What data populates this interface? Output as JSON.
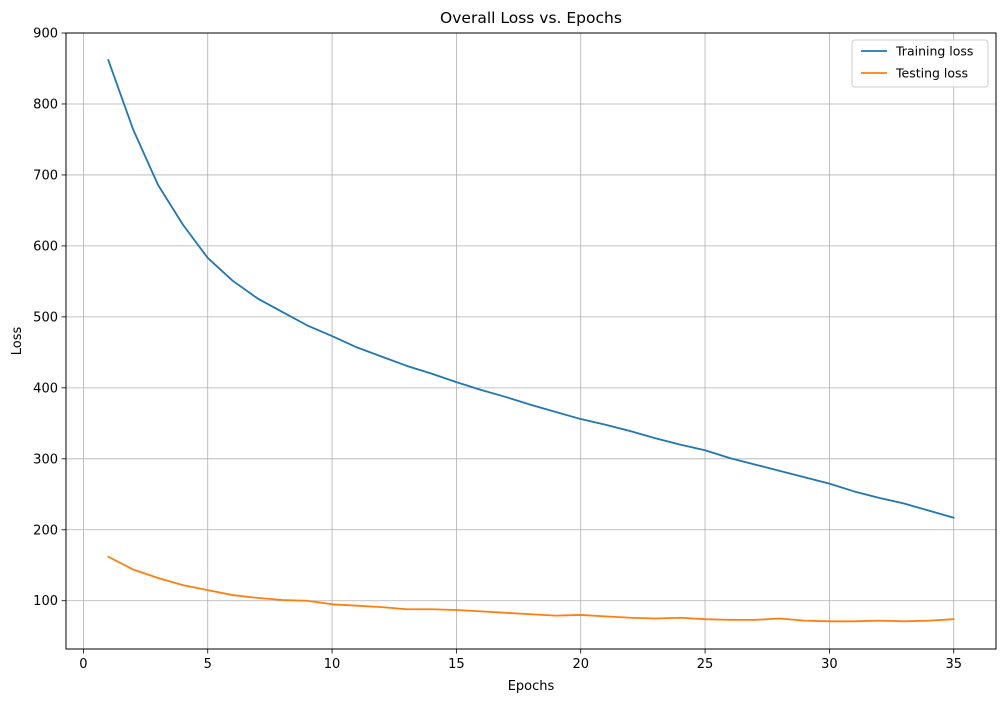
{
  "chart_data": {
    "type": "line",
    "title": "Overall Loss vs. Epochs",
    "xlabel": "Epochs",
    "ylabel": "Loss",
    "xlim": [
      -0.7,
      36.7
    ],
    "ylim": [
      32,
      900
    ],
    "xticks": [
      0,
      5,
      10,
      15,
      20,
      25,
      30,
      35
    ],
    "yticks": [
      100,
      200,
      300,
      400,
      500,
      600,
      700,
      800,
      900
    ],
    "grid": true,
    "legend_position": "top-right",
    "x": [
      1,
      2,
      3,
      4,
      5,
      6,
      7,
      8,
      9,
      10,
      11,
      12,
      13,
      14,
      15,
      16,
      17,
      18,
      19,
      20,
      21,
      22,
      23,
      24,
      25,
      26,
      27,
      28,
      29,
      30,
      31,
      32,
      33,
      34,
      35
    ],
    "series": [
      {
        "name": "Training loss",
        "color": "#1f77b4",
        "values": [
          862,
          764,
          686,
          630,
          583,
          551,
          526,
          507,
          488,
          473,
          457,
          444,
          431,
          420,
          408,
          397,
          387,
          376,
          366,
          356,
          348,
          339,
          329,
          320,
          312,
          301,
          292,
          283,
          274,
          265,
          254,
          245,
          237,
          227,
          217
        ]
      },
      {
        "name": "Testing loss",
        "color": "#ff7f0e",
        "values": [
          162,
          144,
          132,
          122,
          115,
          108,
          104,
          101,
          100,
          95,
          93,
          91,
          88,
          88,
          87,
          85,
          83,
          81,
          79,
          80,
          78,
          76,
          75,
          76,
          74,
          73,
          73,
          75,
          72,
          71,
          71,
          72,
          71,
          72,
          74
        ]
      }
    ]
  }
}
